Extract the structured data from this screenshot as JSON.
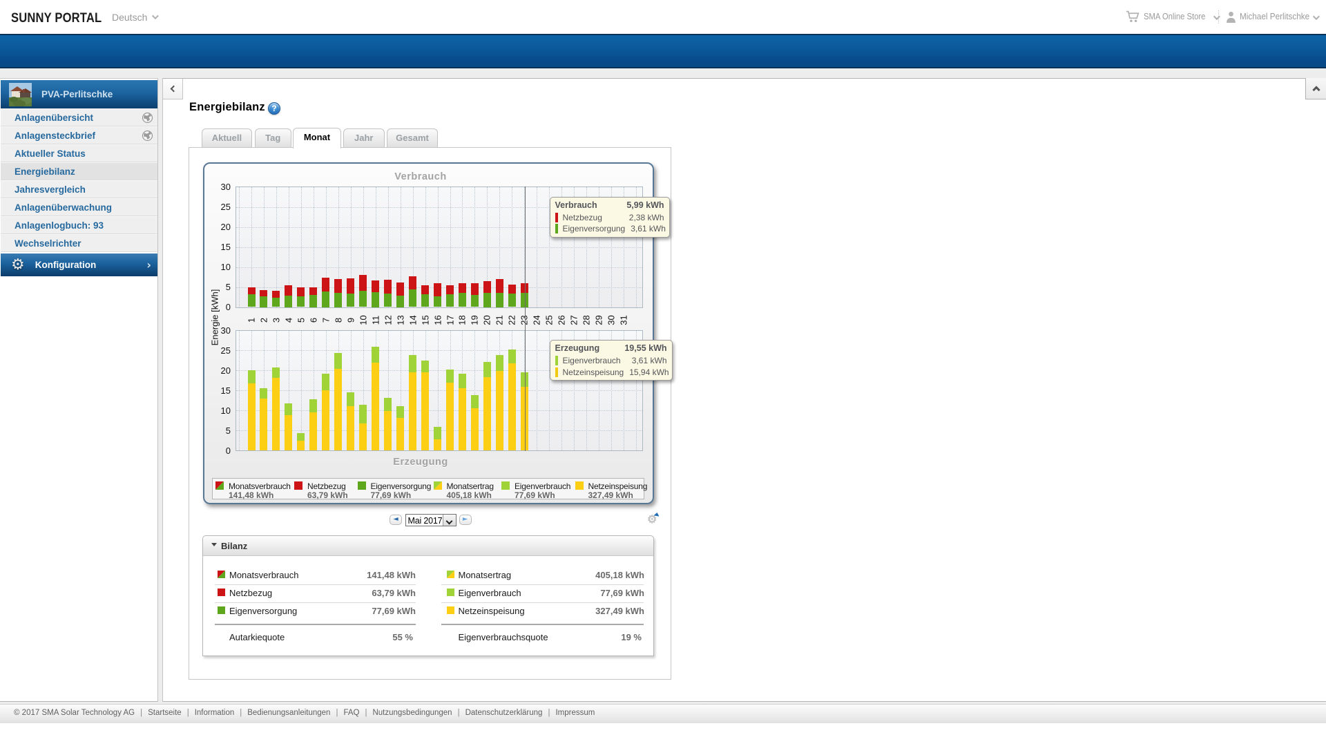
{
  "topbar": {
    "logo": "SUNNY PORTAL",
    "language": "Deutsch",
    "store": "SMA Online Store",
    "user": "Michael Perlitschke"
  },
  "sidebar": {
    "plant_name": "PVA-Perlitschke",
    "items": [
      {
        "label": "Anlagenübersicht",
        "globe": true,
        "active": false
      },
      {
        "label": "Anlagensteckbrief",
        "globe": true,
        "active": false
      },
      {
        "label": "Aktueller Status",
        "globe": false,
        "active": false
      },
      {
        "label": "Energiebilanz",
        "globe": false,
        "active": true
      },
      {
        "label": "Jahresvergleich",
        "globe": false,
        "active": false
      },
      {
        "label": "Anlagenüberwachung",
        "globe": false,
        "active": false
      },
      {
        "label": "Anlagenlogbuch: 93",
        "globe": false,
        "active": false
      },
      {
        "label": "Wechselrichter",
        "globe": false,
        "active": false
      }
    ],
    "config_label": "Konfiguration"
  },
  "main": {
    "title": "Energiebilanz",
    "tabs": [
      {
        "label": "Aktuell",
        "active": false
      },
      {
        "label": "Tag",
        "active": false
      },
      {
        "label": "Monat",
        "active": true
      },
      {
        "label": "Jahr",
        "active": false
      },
      {
        "label": "Gesamt",
        "active": false
      }
    ]
  },
  "chart_data": {
    "type": "bar",
    "stacked": true,
    "x_days": [
      1,
      2,
      3,
      4,
      5,
      6,
      7,
      8,
      9,
      10,
      11,
      12,
      13,
      14,
      15,
      16,
      17,
      18,
      19,
      20,
      21,
      22,
      23,
      24,
      25,
      26,
      27,
      28,
      29,
      30,
      31
    ],
    "ylabel": "Energie [kWh]",
    "ylim": [
      0,
      30
    ],
    "yticks": [
      0,
      5,
      10,
      15,
      20,
      25,
      30
    ],
    "cursor_day": 23,
    "upper": {
      "title": "Verbrauch",
      "series": [
        {
          "name": "Eigenversorgung",
          "color": "#5ea71d",
          "values": [
            3.2,
            2.6,
            2.4,
            2.8,
            2.7,
            3.0,
            3.9,
            3.5,
            3.3,
            4.1,
            3.7,
            3.3,
            2.8,
            4.4,
            3.2,
            2.7,
            3.2,
            3.5,
            3.0,
            3.5,
            3.5,
            3.3,
            3.61
          ]
        },
        {
          "name": "Netzbezug",
          "color": "#cc1417",
          "values": [
            1.8,
            1.7,
            1.6,
            2.7,
            2.3,
            1.9,
            3.4,
            3.5,
            3.8,
            4.0,
            2.9,
            3.5,
            3.4,
            3.3,
            2.3,
            3.2,
            2.2,
            2.4,
            3.0,
            2.9,
            3.5,
            2.3,
            2.38
          ]
        }
      ]
    },
    "lower": {
      "title": "Erzeugung",
      "series": [
        {
          "name": "Netzeinspeisung",
          "color": "#fccf15",
          "values": [
            16.8,
            13.0,
            18.2,
            8.9,
            2.5,
            9.5,
            15.0,
            20.4,
            11.1,
            6.8,
            22.0,
            9.8,
            8.1,
            19.5,
            19.5,
            2.8,
            17.0,
            15.5,
            10.6,
            18.3,
            19.9,
            21.8,
            15.94
          ]
        },
        {
          "name": "Eigenverbrauch",
          "color": "#9fd338",
          "values": [
            3.3,
            2.6,
            2.5,
            2.9,
            1.9,
            3.3,
            4.2,
            4.0,
            3.4,
            4.6,
            3.9,
            3.4,
            2.9,
            4.4,
            2.9,
            3.0,
            3.3,
            3.7,
            3.2,
            3.8,
            3.9,
            3.4,
            3.61
          ]
        }
      ]
    }
  },
  "tooltips": {
    "verbrauch": {
      "title": "Verbrauch",
      "total": "5,99 kWh",
      "rows": [
        {
          "label": "Netzbezug",
          "value": "2,38 kWh",
          "color": "#cc1417"
        },
        {
          "label": "Eigenversorgung",
          "value": "3,61 kWh",
          "color": "#5ea71d"
        }
      ]
    },
    "erzeugung": {
      "title": "Erzeugung",
      "total": "19,55 kWh",
      "rows": [
        {
          "label": "Eigenverbrauch",
          "value": "3,61 kWh",
          "color": "#9fd338"
        },
        {
          "label": "Netzeinspeisung",
          "value": "15,94 kWh",
          "color": "#f0c911"
        }
      ]
    }
  },
  "legend": [
    {
      "label": "Monatsverbrauch",
      "value": "141,48 kWh",
      "icon": "diag",
      "color1": "#cc1417",
      "color2": "#5ea71d"
    },
    {
      "label": "Netzbezug",
      "value": "63,79 kWh",
      "icon": "square",
      "color1": "#cc1417",
      "color2": "#cc1417"
    },
    {
      "label": "Eigenversorgung",
      "value": "77,69 kWh",
      "icon": "square",
      "color1": "#5ea71d",
      "color2": "#5ea71d"
    },
    {
      "label": "Monatsertrag",
      "value": "405,18 kWh",
      "icon": "diag",
      "color1": "#9fd338",
      "color2": "#fccf15"
    },
    {
      "label": "Eigenverbrauch",
      "value": "77,69 kWh",
      "icon": "square",
      "color1": "#9fd338",
      "color2": "#9fd338"
    },
    {
      "label": "Netzeinspeisung",
      "value": "327,49 kWh",
      "icon": "square",
      "color1": "#fccf15",
      "color2": "#fccf15"
    }
  ],
  "pager": {
    "month": "Mai 2017"
  },
  "bilanz": {
    "title": "Bilanz",
    "left_rows": [
      {
        "label": "Monatsverbrauch",
        "value": "141,48 kWh",
        "icon": "diag",
        "color1": "#cc1417",
        "color2": "#5ea71d"
      },
      {
        "label": "Netzbezug",
        "value": "63,79 kWh",
        "icon": "square",
        "color1": "#cc1417",
        "color2": "#cc1417"
      },
      {
        "label": "Eigenversorgung",
        "value": "77,69 kWh",
        "icon": "square",
        "color1": "#5ea71d",
        "color2": "#5ea71d"
      }
    ],
    "right_rows": [
      {
        "label": "Monatsertrag",
        "value": "405,18 kWh",
        "icon": "diag",
        "color1": "#9fd338",
        "color2": "#fccf15"
      },
      {
        "label": "Eigenverbrauch",
        "value": "77,69 kWh",
        "icon": "square",
        "color1": "#9fd338",
        "color2": "#9fd338"
      },
      {
        "label": "Netzeinspeisung",
        "value": "327,49 kWh",
        "icon": "square",
        "color1": "#fccf15",
        "color2": "#fccf15"
      }
    ],
    "left_quote": {
      "label": "Autarkiequote",
      "value": "55 %"
    },
    "right_quote": {
      "label": "Eigenverbrauchsquote",
      "value": "19 %"
    }
  },
  "footer": {
    "copyright": "© 2017 SMA Solar Technology AG",
    "links": [
      "Startseite",
      "Information",
      "Bedienungsanleitungen",
      "FAQ",
      "Nutzungsbedingungen",
      "Datenschutzerklärung",
      "Impressum"
    ]
  }
}
